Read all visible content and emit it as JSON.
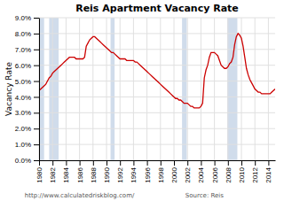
{
  "chart_data": {
    "type": "line",
    "title": "Reis Apartment Vacancy Rate",
    "ylabel": "Vacancy Rate",
    "annotations": [
      "http://www.calculatedriskblog.com/",
      "Source: Reis"
    ],
    "grid": true,
    "xlim": [
      1980,
      2015
    ],
    "xticks": [
      1980,
      1982,
      1984,
      1986,
      1988,
      1990,
      1992,
      1994,
      1996,
      1998,
      2000,
      2002,
      2004,
      2006,
      2008,
      2010,
      2012,
      2014
    ],
    "ylim": [
      0.0,
      0.09
    ],
    "yticks": [
      {
        "value": 0.0,
        "label": "0.0%"
      },
      {
        "value": 0.01,
        "label": "1.0%"
      },
      {
        "value": 0.02,
        "label": "2.0%"
      },
      {
        "value": 0.03,
        "label": "3.0%"
      },
      {
        "value": 0.04,
        "label": "4.0%"
      },
      {
        "value": 0.05,
        "label": "5.0%"
      },
      {
        "value": 0.06,
        "label": "6.0%"
      },
      {
        "value": 0.07,
        "label": "7.0%"
      },
      {
        "value": 0.08,
        "label": "8.0%"
      },
      {
        "value": 0.09,
        "label": "9.0%"
      }
    ],
    "recessions": {
      "color": "#b0c4de",
      "ranges": [
        [
          1980.0,
          1980.75
        ],
        [
          1981.5,
          1982.9
        ],
        [
          1990.6,
          1991.2
        ],
        [
          2001.2,
          2001.9
        ],
        [
          2007.9,
          2009.4
        ]
      ]
    },
    "x": [
      1980.0,
      1980.25,
      1980.5,
      1980.75,
      1981.0,
      1981.25,
      1981.5,
      1981.75,
      1982.0,
      1982.25,
      1982.5,
      1982.75,
      1983.0,
      1983.25,
      1983.5,
      1983.75,
      1984.0,
      1984.25,
      1984.5,
      1984.75,
      1985.0,
      1985.25,
      1985.5,
      1985.75,
      1986.0,
      1986.25,
      1986.5,
      1986.75,
      1987.0,
      1987.25,
      1987.5,
      1987.75,
      1988.0,
      1988.25,
      1988.5,
      1988.75,
      1989.0,
      1989.25,
      1989.5,
      1989.75,
      1990.0,
      1990.25,
      1990.5,
      1990.75,
      1991.0,
      1991.25,
      1991.5,
      1991.75,
      1992.0,
      1992.25,
      1992.5,
      1992.75,
      1993.0,
      1993.25,
      1993.5,
      1993.75,
      1994.0,
      1994.25,
      1994.5,
      1994.75,
      1995.0,
      1995.25,
      1995.5,
      1995.75,
      1996.0,
      1996.25,
      1996.5,
      1996.75,
      1997.0,
      1997.25,
      1997.5,
      1997.75,
      1998.0,
      1998.25,
      1998.5,
      1998.75,
      1999.0,
      1999.25,
      1999.5,
      1999.75,
      2000.0,
      2000.25,
      2000.5,
      2000.75,
      2001.0,
      2001.25,
      2001.5,
      2001.75,
      2002.0,
      2002.25,
      2002.5,
      2002.75,
      2003.0,
      2003.25,
      2003.5,
      2003.75,
      2004.0,
      2004.25,
      2004.5,
      2004.75,
      2005.0,
      2005.25,
      2005.5,
      2005.75,
      2006.0,
      2006.25,
      2006.5,
      2006.75,
      2007.0,
      2007.25,
      2007.5,
      2007.75,
      2008.0,
      2008.25,
      2008.5,
      2008.75,
      2009.0,
      2009.25,
      2009.5,
      2009.75,
      2010.0,
      2010.25,
      2010.5,
      2010.75,
      2011.0,
      2011.25,
      2011.5,
      2011.75,
      2012.0,
      2012.25,
      2012.5,
      2012.75,
      2013.0,
      2013.25,
      2013.5,
      2013.75,
      2014.0,
      2014.25,
      2014.5,
      2014.75,
      2015.0
    ],
    "series": [
      {
        "color": "#cc0000",
        "values": [
          0.044,
          0.045,
          0.046,
          0.047,
          0.048,
          0.05,
          0.052,
          0.053,
          0.055,
          0.056,
          0.057,
          0.058,
          0.059,
          0.06,
          0.061,
          0.062,
          0.063,
          0.064,
          0.065,
          0.065,
          0.065,
          0.065,
          0.064,
          0.064,
          0.064,
          0.064,
          0.064,
          0.065,
          0.072,
          0.074,
          0.076,
          0.077,
          0.078,
          0.078,
          0.077,
          0.076,
          0.075,
          0.074,
          0.073,
          0.072,
          0.071,
          0.07,
          0.069,
          0.068,
          0.068,
          0.067,
          0.066,
          0.065,
          0.064,
          0.064,
          0.064,
          0.064,
          0.063,
          0.063,
          0.063,
          0.063,
          0.063,
          0.062,
          0.062,
          0.061,
          0.06,
          0.059,
          0.058,
          0.057,
          0.056,
          0.055,
          0.054,
          0.053,
          0.052,
          0.051,
          0.05,
          0.049,
          0.048,
          0.047,
          0.046,
          0.045,
          0.044,
          0.043,
          0.042,
          0.041,
          0.04,
          0.039,
          0.039,
          0.038,
          0.038,
          0.037,
          0.036,
          0.036,
          0.036,
          0.035,
          0.034,
          0.034,
          0.033,
          0.033,
          0.033,
          0.033,
          0.034,
          0.036,
          0.052,
          0.057,
          0.06,
          0.065,
          0.068,
          0.068,
          0.068,
          0.067,
          0.066,
          0.063,
          0.06,
          0.059,
          0.058,
          0.058,
          0.059,
          0.061,
          0.062,
          0.065,
          0.073,
          0.078,
          0.08,
          0.079,
          0.077,
          0.072,
          0.065,
          0.058,
          0.054,
          0.051,
          0.049,
          0.047,
          0.045,
          0.044,
          0.043,
          0.043,
          0.042,
          0.042,
          0.042,
          0.042,
          0.042,
          0.042,
          0.043,
          0.044,
          0.045
        ]
      }
    ]
  }
}
